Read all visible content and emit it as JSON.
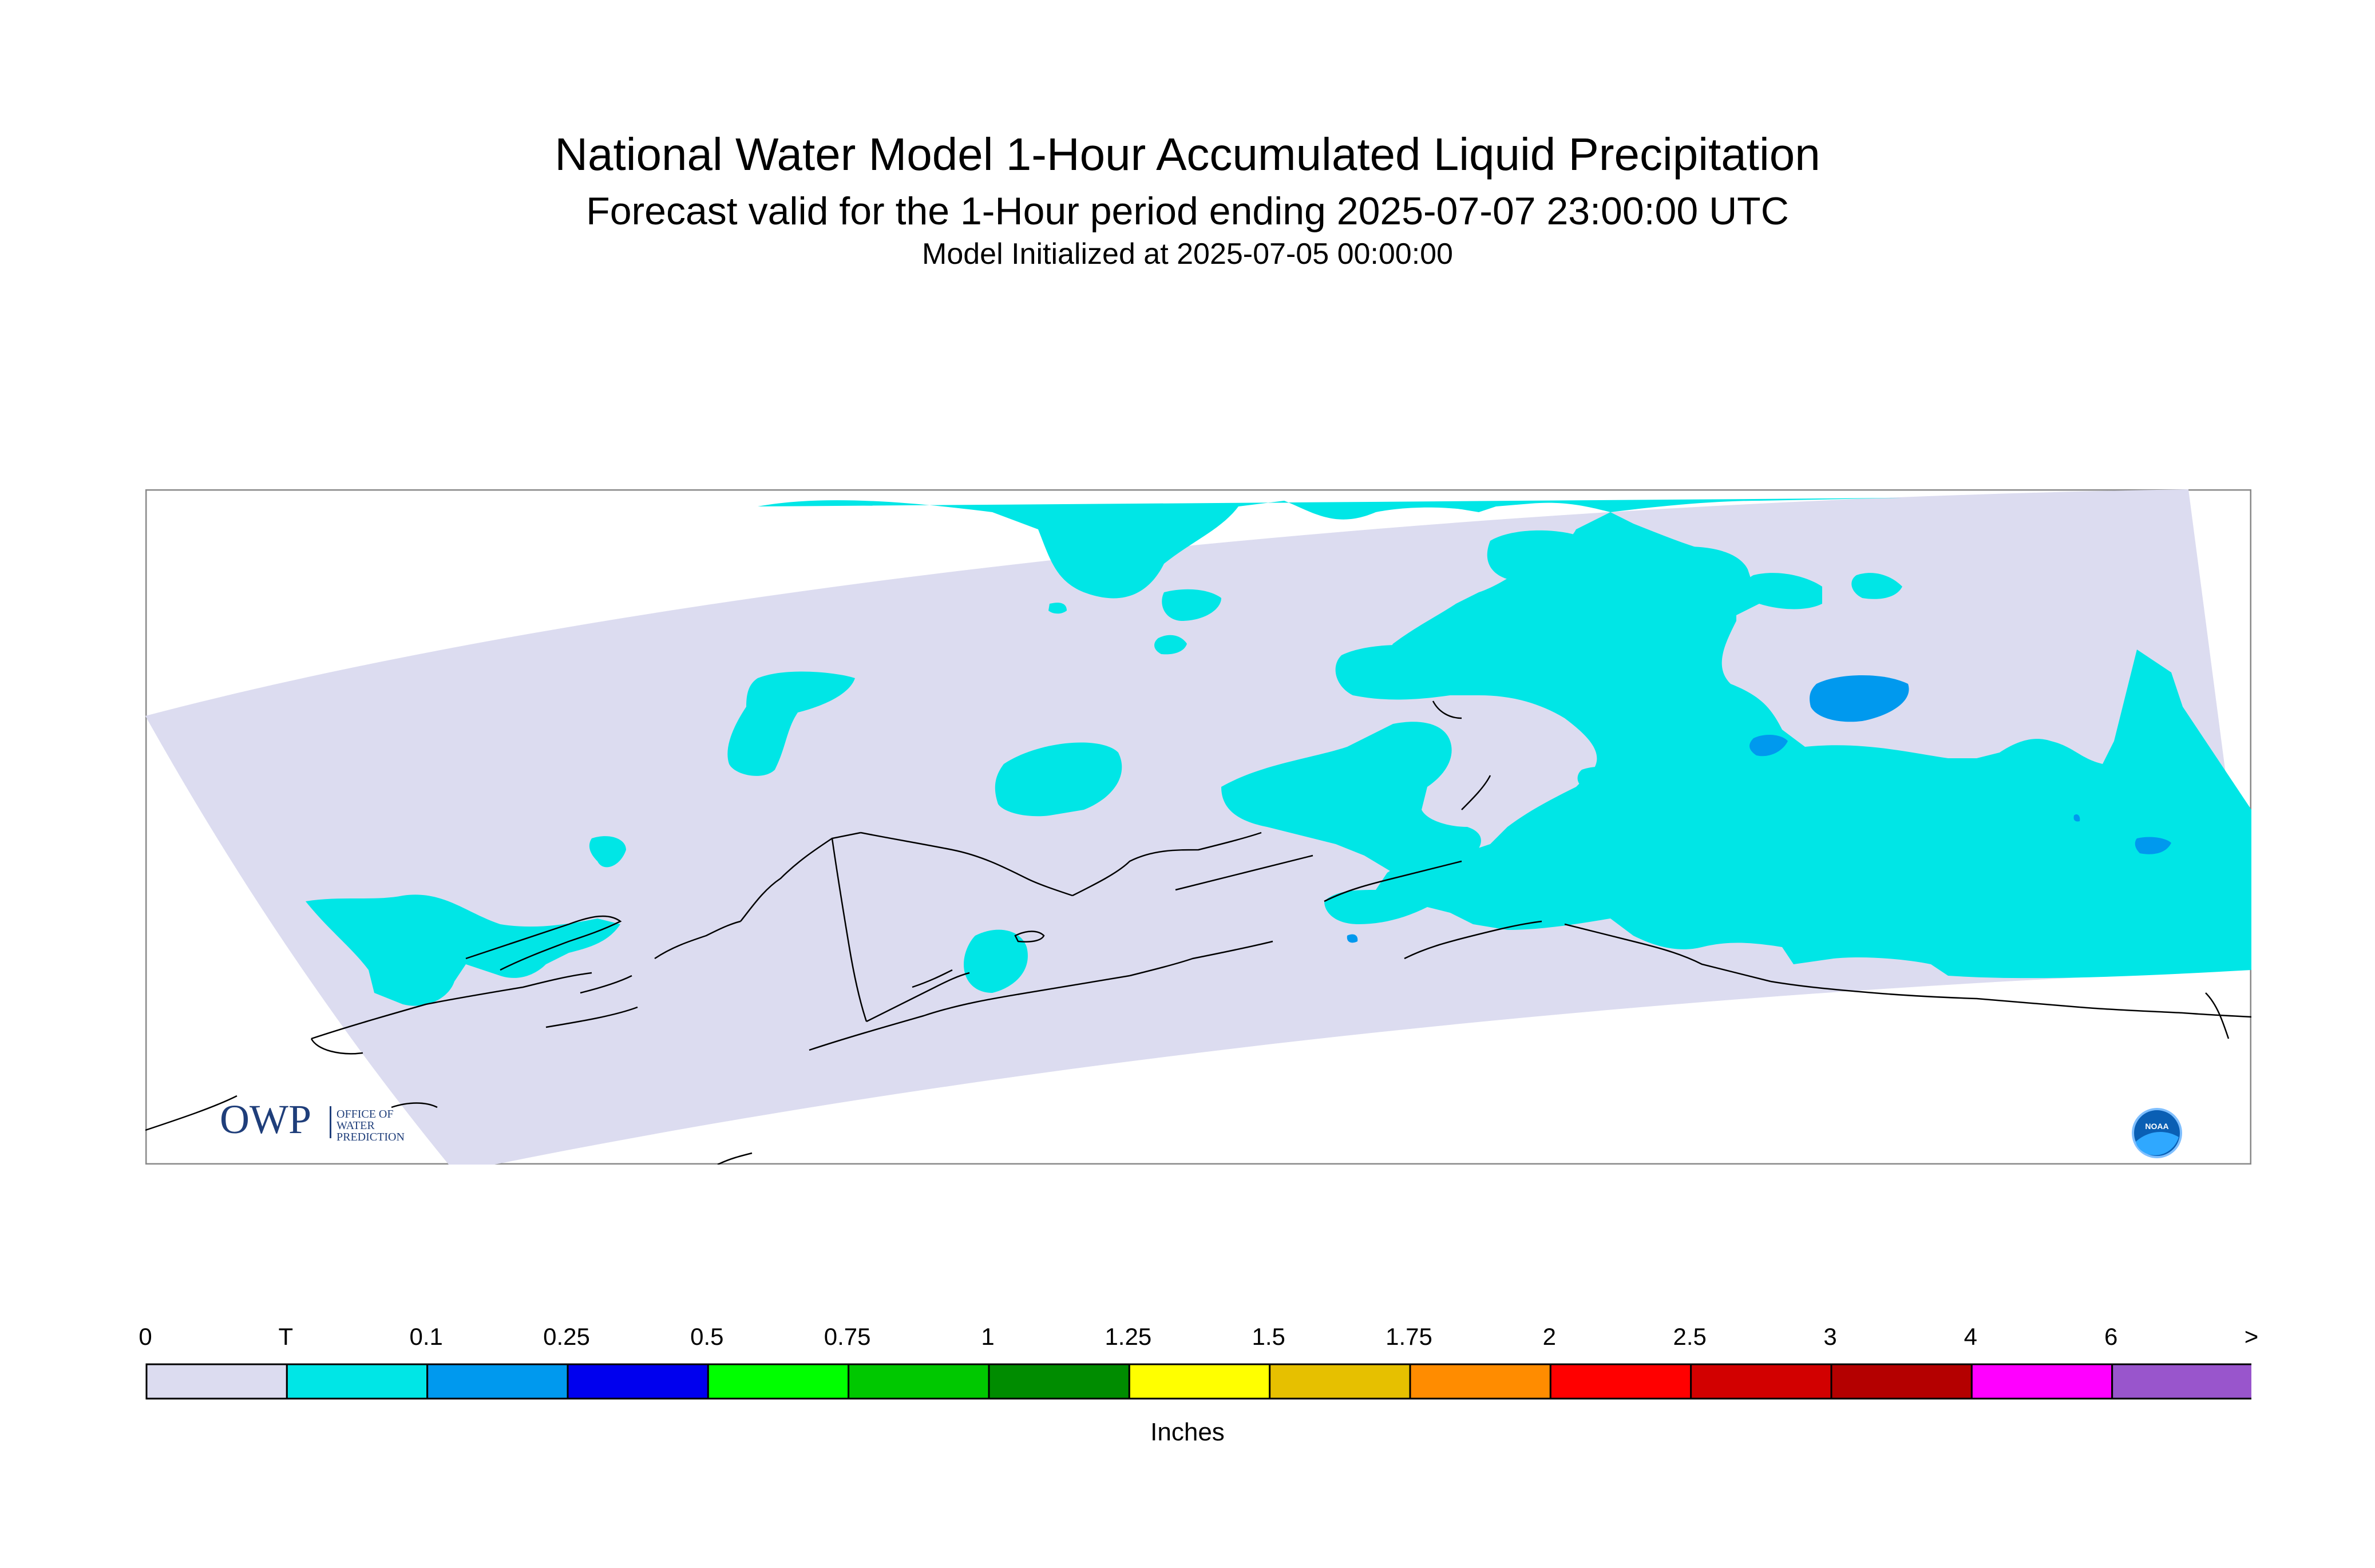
{
  "header": {
    "title": "National Water Model 1-Hour Accumulated Liquid Precipitation",
    "subtitle": "Forecast valid for the 1-Hour period ending 2025-07-07 23:00:00 UTC",
    "init": "Model Initialized at 2025-07-05 00:00:00"
  },
  "logos": {
    "owp_letters": "OWP",
    "owp_text_lines": [
      "OFFICE OF",
      "WATER",
      "PREDICTION"
    ],
    "noaa_text": "NOAA"
  },
  "map": {
    "domain_fill": "#dcdcf0",
    "background": "#ffffff",
    "coast_color": "#000000"
  },
  "legend": {
    "units": "Inches",
    "labels": [
      "0",
      "T",
      "0.1",
      "0.25",
      "0.5",
      "0.75",
      "1",
      "1.25",
      "1.5",
      "1.75",
      "2",
      "2.5",
      "3",
      "4",
      "6",
      ">"
    ],
    "colors": [
      "#dcdcf0",
      "#00e6e6",
      "#0099ee",
      "#0000ee",
      "#00ff00",
      "#00c800",
      "#008c00",
      "#ffff00",
      "#e6c000",
      "#ff8c00",
      "#ff0000",
      "#d20000",
      "#b40000",
      "#ff00ff",
      "#9955cc"
    ]
  }
}
